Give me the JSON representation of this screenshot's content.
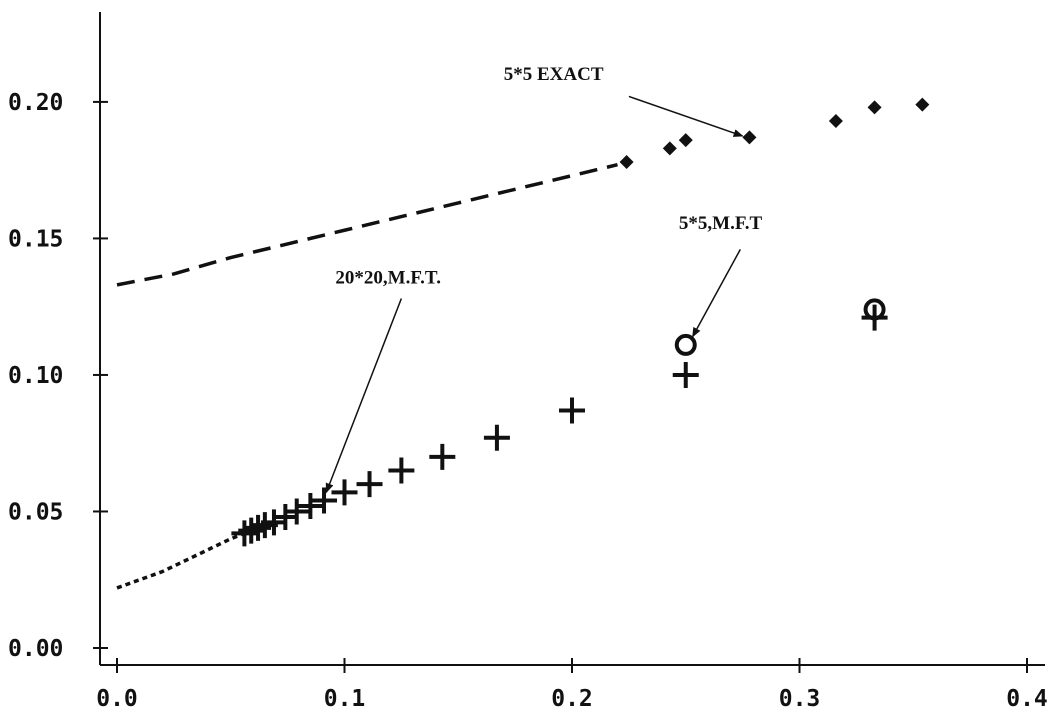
{
  "chart_data": {
    "type": "scatter",
    "title": "",
    "xlabel": "",
    "ylabel": "",
    "xlim": [
      0.0,
      0.4
    ],
    "ylim": [
      0.0,
      0.23
    ],
    "grid": false,
    "legend": "none",
    "x_ticks": [
      0.0,
      0.1,
      0.2,
      0.3,
      0.4
    ],
    "y_ticks": [
      0.0,
      0.05,
      0.1,
      0.15,
      0.2
    ],
    "x_tick_labels": [
      "0.0",
      "0.1",
      "0.2",
      "0.3",
      "0.4"
    ],
    "y_tick_labels": [
      "0.00",
      "0.05",
      "0.10",
      "0.15",
      "0.20"
    ],
    "series": [
      {
        "marker": "dashed-line",
        "color": "#111111",
        "x": [
          0.0,
          0.025,
          0.05,
          0.075,
          0.1,
          0.125,
          0.15,
          0.175,
          0.2,
          0.22
        ],
        "y": [
          0.133,
          0.137,
          0.143,
          0.148,
          0.153,
          0.158,
          0.163,
          0.168,
          0.173,
          0.177
        ]
      },
      {
        "marker": "diamond",
        "color": "#111111",
        "x": [
          0.224,
          0.243,
          0.25,
          0.278,
          0.316,
          0.333,
          0.354
        ],
        "y": [
          0.178,
          0.183,
          0.186,
          0.187,
          0.193,
          0.198,
          0.199
        ]
      },
      {
        "marker": "dotted-line",
        "color": "#111111",
        "x": [
          0.0,
          0.01,
          0.02,
          0.03,
          0.04,
          0.05,
          0.056
        ],
        "y": [
          0.022,
          0.025,
          0.028,
          0.032,
          0.036,
          0.04,
          0.042
        ]
      },
      {
        "marker": "plus",
        "color": "#111111",
        "x": [
          0.056,
          0.059,
          0.062,
          0.065,
          0.069,
          0.074,
          0.079,
          0.085,
          0.091,
          0.1,
          0.111,
          0.125,
          0.143,
          0.167,
          0.2,
          0.25,
          0.333
        ],
        "y": [
          0.042,
          0.043,
          0.044,
          0.045,
          0.046,
          0.048,
          0.05,
          0.052,
          0.054,
          0.057,
          0.06,
          0.065,
          0.07,
          0.077,
          0.087,
          0.1,
          0.121
        ]
      },
      {
        "marker": "open-circle",
        "color": "#111111",
        "x": [
          0.25,
          0.333
        ],
        "y": [
          0.111,
          0.124
        ]
      }
    ],
    "annotations": [
      {
        "text": "5*5 EXACT",
        "text_x": 0.17,
        "text_y": 0.208,
        "arrow_from_x": 0.225,
        "arrow_from_y": 0.202,
        "arrow_to_x": 0.275,
        "arrow_to_y": 0.1875
      },
      {
        "text": "5*5,M.F.T",
        "text_x": 0.247,
        "text_y": 0.1535,
        "arrow_from_x": 0.274,
        "arrow_from_y": 0.146,
        "arrow_to_x": 0.253,
        "arrow_to_y": 0.114
      },
      {
        "text": "20*20,M.F.T.",
        "text_x": 0.096,
        "text_y": 0.1335,
        "arrow_from_x": 0.125,
        "arrow_from_y": 0.128,
        "arrow_to_x": 0.092,
        "arrow_to_y": 0.057
      }
    ]
  }
}
